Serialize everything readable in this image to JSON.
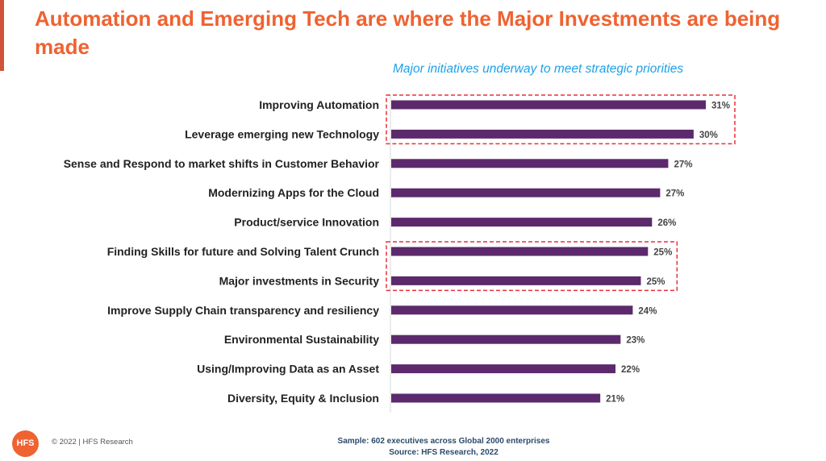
{
  "header": {
    "title": "Automation and Emerging Tech are where the Major Investments are being made",
    "accent_color": "#ef6231"
  },
  "chart_data": {
    "type": "bar",
    "orientation": "horizontal",
    "title": "Major initiatives underway to meet strategic priorities",
    "xlabel": "",
    "ylabel": "",
    "xlim": [
      0,
      31
    ],
    "grid": false,
    "legend": "none",
    "bar_color": "#5c2a6c",
    "highlight_color": "#e8303a",
    "categories": [
      "Improving Automation",
      "Leverage emerging new Technology",
      "Sense and Respond to market shifts in Customer Behavior",
      "Modernizing Apps for the Cloud",
      "Product/service Innovation",
      "Finding Skills for future and Solving Talent Crunch",
      "Major investments in Security",
      "Improve Supply Chain transparency and resiliency",
      "Environmental  Sustainability",
      "Using/Improving Data as an Asset",
      "Diversity, Equity & Inclusion"
    ],
    "values": [
      31,
      30,
      27,
      27,
      26,
      25,
      25,
      24,
      23,
      22,
      21
    ],
    "precise_values": [
      31.0,
      29.8,
      27.3,
      26.5,
      25.7,
      25.3,
      24.6,
      23.8,
      22.6,
      22.1,
      20.6
    ],
    "data_labels": [
      "31%",
      "30%",
      "27%",
      "27%",
      "26%",
      "25%",
      "25%",
      "24%",
      "23%",
      "22%",
      "21%"
    ],
    "highlight_groups": [
      [
        0,
        1
      ],
      [
        5,
        6
      ]
    ]
  },
  "footer": {
    "logo_text": "HFS",
    "copyright": "© 2022 | HFS Research",
    "sample": "Sample: 602 executives across Global 2000 enterprises",
    "source": "Source: HFS Research, 2022"
  }
}
